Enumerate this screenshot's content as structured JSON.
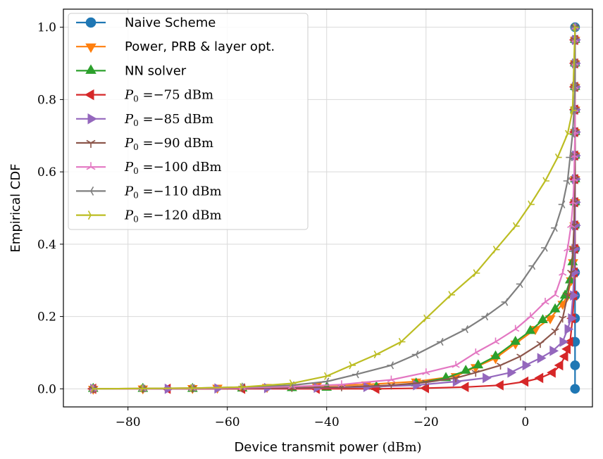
{
  "chart_data": {
    "type": "line",
    "xlabel": "Device transmit power",
    "xlabel_unit": "(dBm)",
    "ylabel": "Empirical CDF",
    "xlim": [
      -93,
      13.5
    ],
    "ylim": [
      -0.05,
      1.05
    ],
    "xticks": [
      -80,
      -60,
      -40,
      -20,
      0
    ],
    "xtick_labels": [
      "−80",
      "−60",
      "−40",
      "−20",
      "0"
    ],
    "yticks": [
      0.0,
      0.2,
      0.4,
      0.6,
      0.8,
      1.0
    ],
    "ytick_labels": [
      "0.0",
      "0.2",
      "0.4",
      "0.6",
      "0.8",
      "1.0"
    ],
    "grid": true,
    "legend_position": "top-left",
    "series": [
      {
        "name": "Naive Scheme",
        "color": "#1f77b4",
        "marker": "circle",
        "x": [
          10,
          10,
          10,
          10,
          10,
          10,
          10,
          10,
          10,
          10,
          10,
          10,
          10,
          10,
          10,
          10,
          10
        ],
        "y": [
          0.0,
          0.065,
          0.13,
          0.195,
          0.258,
          0.322,
          0.387,
          0.452,
          0.516,
          0.58,
          0.645,
          0.71,
          0.772,
          0.835,
          0.9,
          0.965,
          1.0
        ]
      },
      {
        "name": "Power, PRB & layer opt.",
        "color": "#ff7f0e",
        "marker": "triangle-down",
        "x": [
          -87,
          -77,
          -67,
          -62,
          -52,
          -42,
          -32,
          -22,
          -14,
          -10,
          -6,
          -2,
          2,
          5,
          7.5,
          8.5,
          9.2,
          9.6,
          9.8,
          9.9,
          10,
          10,
          10,
          10,
          10,
          10,
          10,
          10
        ],
        "y": [
          0.0,
          0.001,
          0.002,
          0.003,
          0.005,
          0.008,
          0.012,
          0.02,
          0.035,
          0.06,
          0.085,
          0.125,
          0.165,
          0.195,
          0.235,
          0.258,
          0.3,
          0.35,
          0.387,
          0.452,
          0.516,
          0.58,
          0.645,
          0.71,
          0.772,
          0.835,
          0.9,
          0.965
        ]
      },
      {
        "name": "NN solver",
        "color": "#2ca02c",
        "marker": "triangle-up",
        "x": [
          -87,
          -77,
          -67,
          -57,
          -47,
          -40,
          -30,
          -22,
          -16,
          -12,
          -9.5,
          -6,
          -2,
          1,
          3.5,
          6,
          8,
          9,
          9.5,
          9.8,
          9.9,
          10,
          10,
          10,
          10,
          10,
          10,
          10,
          10
        ],
        "y": [
          0.0,
          0.0,
          0.0,
          0.001,
          0.002,
          0.003,
          0.005,
          0.015,
          0.03,
          0.05,
          0.065,
          0.09,
          0.13,
          0.16,
          0.19,
          0.22,
          0.258,
          0.3,
          0.35,
          0.387,
          0.452,
          0.516,
          0.58,
          0.645,
          0.71,
          0.772,
          0.835,
          0.9,
          0.965
        ]
      },
      {
        "name": "P_0 = -75 dBm",
        "legend_math": [
          "P",
          "0",
          " =−75",
          " dBm"
        ],
        "color": "#d62728",
        "marker": "triangle-left",
        "x": [
          -87,
          -72,
          -57,
          -42,
          -30,
          -20,
          -12,
          -5,
          0,
          3,
          5.5,
          7,
          8,
          8.5,
          9,
          9.5,
          9.8,
          9.9,
          10,
          10,
          10,
          10,
          10,
          10,
          10,
          10,
          10,
          10
        ],
        "y": [
          0.0,
          0.0,
          0.0,
          0.0,
          0.0,
          0.002,
          0.005,
          0.01,
          0.02,
          0.03,
          0.045,
          0.065,
          0.09,
          0.11,
          0.13,
          0.195,
          0.258,
          0.322,
          0.387,
          0.452,
          0.516,
          0.58,
          0.645,
          0.71,
          0.772,
          0.835,
          0.9,
          0.965
        ]
      },
      {
        "name": "P_0 = -85 dBm",
        "legend_math": [
          "P",
          "0",
          " =−85",
          " dBm"
        ],
        "color": "#9467bd",
        "marker": "triangle-right",
        "x": [
          -87,
          -72,
          -62,
          -52,
          -42,
          -32,
          -22,
          -14,
          -8,
          -3,
          0,
          3,
          5.5,
          7.5,
          8.5,
          9.2,
          9.6,
          9.8,
          9.9,
          10,
          10,
          10,
          10,
          10,
          10,
          10,
          10,
          10
        ],
        "y": [
          0.0,
          0.0,
          0.001,
          0.002,
          0.003,
          0.005,
          0.01,
          0.02,
          0.03,
          0.045,
          0.065,
          0.085,
          0.105,
          0.13,
          0.165,
          0.195,
          0.258,
          0.322,
          0.387,
          0.452,
          0.516,
          0.58,
          0.645,
          0.71,
          0.772,
          0.835,
          0.9,
          0.965
        ]
      },
      {
        "name": "P_0 = -90 dBm",
        "legend_math": [
          "P",
          "0",
          " =−90",
          " dBm"
        ],
        "color": "#8c564b",
        "marker": "tri-down",
        "x": [
          -87,
          -77,
          -67,
          -57,
          -47,
          -37,
          -27,
          -20,
          -14,
          -10,
          -5,
          -1,
          3,
          6,
          7.5,
          8.5,
          9.2,
          9.6,
          9.8,
          9.9,
          10,
          10,
          10,
          10,
          10,
          10,
          10,
          10
        ],
        "y": [
          0.0,
          0.0,
          0.001,
          0.002,
          0.003,
          0.005,
          0.01,
          0.018,
          0.03,
          0.045,
          0.065,
          0.09,
          0.125,
          0.16,
          0.195,
          0.258,
          0.322,
          0.387,
          0.452,
          0.516,
          0.58,
          0.645,
          0.71,
          0.772,
          0.835,
          0.9,
          0.965,
          1.0
        ]
      },
      {
        "name": "P_0 = -100 dBm",
        "legend_math": [
          "P",
          "0",
          " =−100",
          " dBm"
        ],
        "color": "#e377c2",
        "marker": "tri-up",
        "x": [
          -87,
          -77,
          -67,
          -57,
          -47,
          -37,
          -27,
          -20,
          -14,
          -10,
          -6,
          -2,
          1,
          4,
          6,
          7.5,
          8.5,
          9.2,
          9.6,
          9.8,
          9.9,
          10,
          10,
          10,
          10,
          10,
          10,
          10
        ],
        "y": [
          0.0,
          0.0,
          0.001,
          0.003,
          0.006,
          0.012,
          0.025,
          0.045,
          0.065,
          0.1,
          0.13,
          0.165,
          0.2,
          0.24,
          0.26,
          0.32,
          0.387,
          0.452,
          0.516,
          0.58,
          0.645,
          0.71,
          0.772,
          0.835,
          0.9,
          0.965,
          1.0,
          1.0
        ]
      },
      {
        "name": "P_0 = -110 dBm",
        "legend_math": [
          "P",
          "0",
          " =−110",
          " dBm"
        ],
        "color": "#7f7f7f",
        "marker": "tri-left",
        "x": [
          -87,
          -77,
          -67,
          -57,
          -47,
          -40,
          -34,
          -27,
          -22,
          -17,
          -12,
          -8,
          -4,
          -1,
          1.5,
          4,
          6,
          7.5,
          8.5,
          9,
          9.5,
          9.8,
          10,
          10,
          10,
          10,
          10
        ],
        "y": [
          0.0,
          0.001,
          0.002,
          0.005,
          0.01,
          0.02,
          0.04,
          0.065,
          0.095,
          0.13,
          0.165,
          0.2,
          0.24,
          0.29,
          0.34,
          0.39,
          0.445,
          0.51,
          0.575,
          0.64,
          0.705,
          0.77,
          0.835,
          0.9,
          0.965,
          1.0,
          1.0
        ]
      },
      {
        "name": "P_0 = -120 dBm",
        "legend_math": [
          "P",
          "0",
          " =−120",
          " dBm"
        ],
        "color": "#bcbd22",
        "marker": "tri-right",
        "x": [
          -87,
          -77,
          -67,
          -57,
          -47,
          -40,
          -35,
          -30,
          -25,
          -20,
          -15,
          -10,
          -6,
          -2,
          1,
          4,
          6.5,
          8.5,
          9.5,
          10
        ],
        "y": [
          0.0,
          0.001,
          0.002,
          0.005,
          0.015,
          0.035,
          0.065,
          0.095,
          0.13,
          0.195,
          0.26,
          0.32,
          0.385,
          0.45,
          0.51,
          0.575,
          0.64,
          0.705,
          0.77,
          1.0
        ]
      }
    ]
  }
}
